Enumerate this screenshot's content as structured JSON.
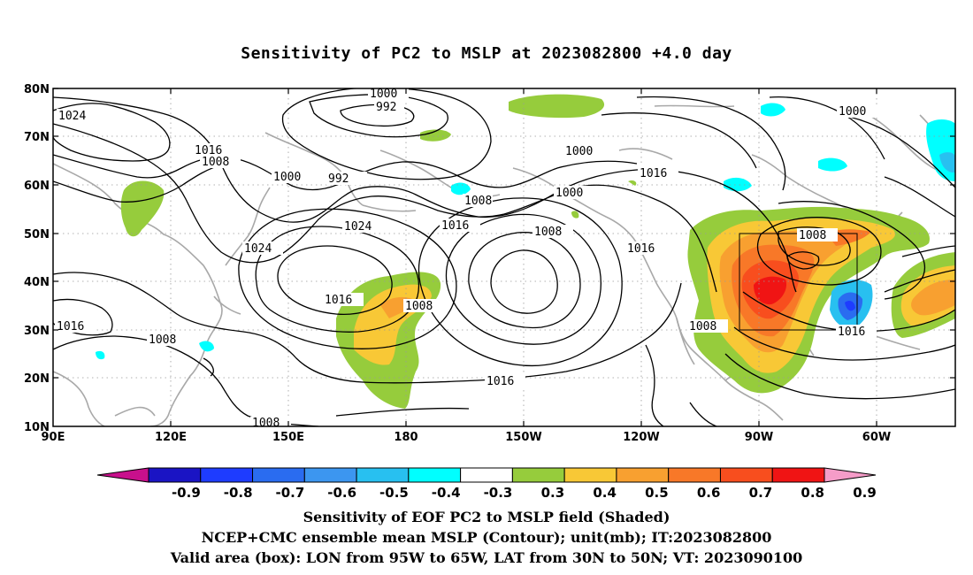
{
  "title": "Sensitivity of PC2 to MSLP at 2023082800 +4.0 day",
  "lat_ticks": [
    "80N",
    "70N",
    "60N",
    "50N",
    "40N",
    "30N",
    "20N",
    "10N"
  ],
  "lon_ticks": [
    "90E",
    "120E",
    "150E",
    "180",
    "150W",
    "120W",
    "90W",
    "60W"
  ],
  "contour_labels": [
    "1024",
    "1000",
    "992",
    "1000",
    "1016",
    "1008",
    "1000",
    "1000",
    "992",
    "1016",
    "1008",
    "1000",
    "1016",
    "1024",
    "1008",
    "1008",
    "1024",
    "1016",
    "1016",
    "1008",
    "1016",
    "1008",
    "1016",
    "1008"
  ],
  "colorbar": {
    "colors": [
      "#c8108c",
      "#1a14c4",
      "#1e3cff",
      "#2a6cf0",
      "#3c96f0",
      "#28c0f0",
      "#00ffff",
      "#ffffff",
      "#96cc3c",
      "#f8c836",
      "#f8a030",
      "#f87828",
      "#f84e1e",
      "#f01414",
      "#f59cc8"
    ],
    "labels": [
      "-0.9",
      "-0.8",
      "-0.7",
      "-0.6",
      "-0.5",
      "-0.4",
      "-0.3",
      "0.3",
      "0.4",
      "0.5",
      "0.6",
      "0.7",
      "0.8",
      "0.9"
    ]
  },
  "captions": [
    "Sensitivity of EOF PC2 to MSLP field (Shaded)",
    "NCEP+CMC ensemble mean MSLP (Contour); unit(mb); IT:2023082800",
    "Valid area (box): LON from 95W to 65W, LAT from 30N to 50N; VT: 2023090100"
  ]
}
